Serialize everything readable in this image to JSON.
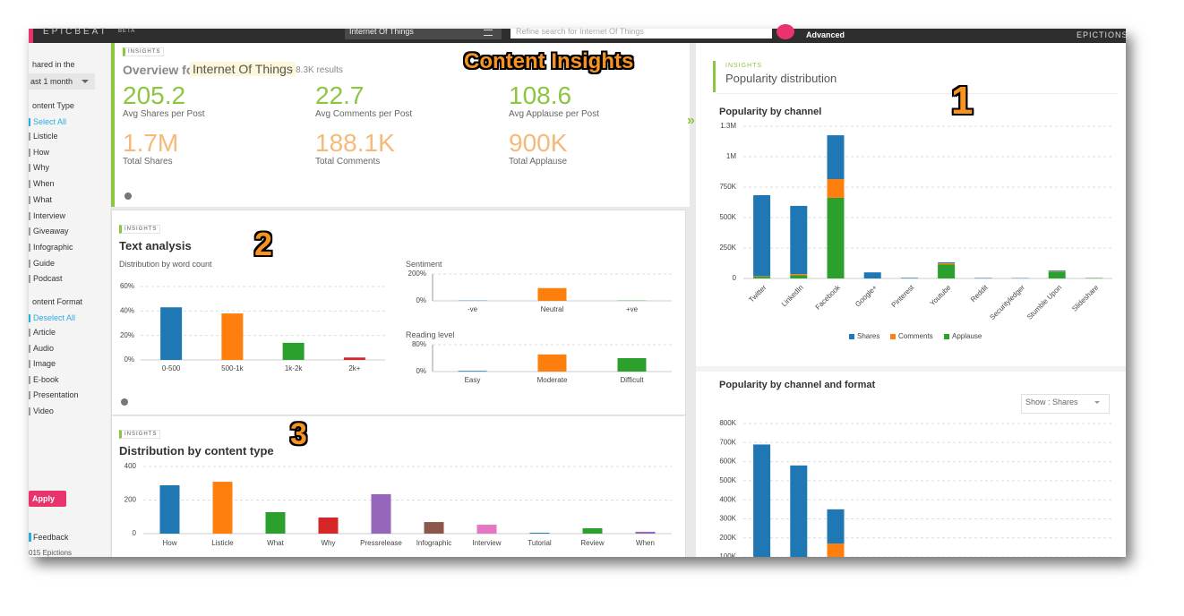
{
  "top_bar": {
    "logo": "EPICBEAT",
    "logo_tag": "BETA",
    "topic": "Internet Of Things",
    "search_placeholder": "Refine search for Internet Of Things",
    "advanced": "Advanced",
    "brand": "EPICTIONS"
  },
  "sidebar": {
    "shared_label": "hared in the",
    "period": "ast 1 month",
    "content_type": {
      "heading": "ontent Type",
      "toggle": "Select All",
      "items": [
        "Listicle",
        "How",
        "Why",
        "When",
        "What",
        "Interview",
        "Giveaway",
        "Infographic",
        "Guide",
        "Podcast"
      ]
    },
    "content_format": {
      "heading": "ontent Format",
      "toggle": "Deselect All",
      "items": [
        "Article",
        "Audio",
        "Image",
        "E-book",
        "Presentation",
        "Video"
      ]
    },
    "apply": "Apply",
    "feedback": "Feedback",
    "copyright": "015 Epictions"
  },
  "annotations": {
    "title": "Content Insights",
    "markers": [
      "1",
      "2",
      "3"
    ]
  },
  "overview": {
    "badge": "INSIGHTS",
    "title": "Overview for",
    "topic": "Internet Of Things",
    "results": "- 8.3K results",
    "metrics": [
      {
        "value": "205.2",
        "label": "Avg Shares per Post"
      },
      {
        "value": "22.7",
        "label": "Avg Comments per Post"
      },
      {
        "value": "108.6",
        "label": "Avg Applause per Post"
      },
      {
        "value": "1.7M",
        "label": "Total Shares"
      },
      {
        "value": "188.1K",
        "label": "Total Comments"
      },
      {
        "value": "900K",
        "label": "Total Applause"
      }
    ]
  },
  "text_analysis": {
    "badge": "INSIGHTS",
    "title": "Text analysis"
  },
  "content_type_panel": {
    "badge": "INSIGHTS"
  },
  "popularity": {
    "badge": "INSIGHTS",
    "title": "Popularity distribution",
    "show_filter": "Show : Shares"
  },
  "chart_data": [
    {
      "type": "bar",
      "title": "Distribution by word count",
      "categories": [
        "0-500",
        "500-1k",
        "1k-2k",
        "2k+"
      ],
      "values": [
        43,
        38,
        14,
        2
      ],
      "colors": [
        "#1f77b4",
        "#ff7f0e",
        "#2ca02c",
        "#d62728"
      ],
      "ylim": [
        0,
        60
      ],
      "yticks": [
        {
          "value": 0,
          "label": "0%"
        },
        {
          "value": 20,
          "label": "20%"
        },
        {
          "value": 40,
          "label": "40%"
        },
        {
          "value": 60,
          "label": "60%"
        }
      ],
      "grid": true
    },
    {
      "type": "bar",
      "title": "Sentiment",
      "categories": [
        "-ve",
        "Neutral",
        "+ve"
      ],
      "values": [
        2,
        95,
        2
      ],
      "colors": [
        "#1f77b4",
        "#ff7f0e",
        "#2ca02c"
      ],
      "ylim": [
        0,
        200
      ],
      "yticks": [
        {
          "value": 0,
          "label": "0%"
        },
        {
          "value": 200,
          "label": "200%"
        }
      ],
      "grid": true
    },
    {
      "type": "bar",
      "title": "Reading level",
      "categories": [
        "Easy",
        "Moderate",
        "Difficult"
      ],
      "values": [
        2,
        51,
        40
      ],
      "colors": [
        "#1f77b4",
        "#ff7f0e",
        "#2ca02c"
      ],
      "ylim": [
        0,
        80
      ],
      "yticks": [
        {
          "value": 0,
          "label": "0%"
        },
        {
          "value": 80,
          "label": "80%"
        }
      ],
      "grid": true
    },
    {
      "type": "bar",
      "title": "Distribution by content type",
      "categories": [
        "How",
        "Listicle",
        "What",
        "Why",
        "Pressrelease",
        "Infographic",
        "Interview",
        "Tutorial",
        "Review",
        "When"
      ],
      "values": [
        288,
        309,
        128,
        96,
        235,
        69,
        53,
        5,
        32,
        11
      ],
      "colors": [
        "#1f77b4",
        "#ff7f0e",
        "#2ca02c",
        "#d62728",
        "#9467bd",
        "#8c564b",
        "#e377c2",
        "#1f77b4",
        "#2ca02c",
        "#9467bd"
      ],
      "ylim": [
        0,
        400
      ],
      "yticks": [
        0,
        200,
        400
      ],
      "grid": true
    },
    {
      "type": "bar",
      "stacked": true,
      "title": "Popularity by channel",
      "categories": [
        "Twitter",
        "LinkedIn",
        "Facebook",
        "Google+",
        "Pinterest",
        "Youtube",
        "Reddit",
        "Securityledger",
        "Stumble Upon",
        "Slideshare"
      ],
      "series": [
        {
          "name": "Shares",
          "color": "#1f77b4",
          "values": [
            665000,
            560000,
            360000,
            50000,
            5000,
            8000,
            4000,
            3000,
            5000,
            0
          ]
        },
        {
          "name": "Comments",
          "color": "#ff7f0e",
          "values": [
            5000,
            10000,
            154000,
            0,
            0,
            10000,
            0,
            0,
            4000,
            0
          ]
        },
        {
          "name": "Applause",
          "color": "#2ca02c",
          "values": [
            14000,
            26000,
            662000,
            0,
            0,
            114000,
            0,
            0,
            57000,
            4000
          ]
        }
      ],
      "ylim": [
        0,
        1250000
      ],
      "yticks": [
        0,
        {
          "value": 250000,
          "label": "250K"
        },
        {
          "value": 500000,
          "label": "500K"
        },
        {
          "value": 750000,
          "label": "750K"
        },
        {
          "value": 1000000,
          "label": "1M"
        },
        {
          "value": 1250000,
          "label": "1.3M"
        }
      ],
      "grid": true
    },
    {
      "type": "bar",
      "stacked": true,
      "title": "Popularity by channel and format",
      "categories": [
        null,
        null,
        null
      ],
      "series": [
        {
          "color": "#1f77b4",
          "values": [
            690000,
            580000,
            180000
          ]
        },
        {
          "color": "#ff7f0e",
          "values": [
            null,
            null,
            170000
          ]
        }
      ],
      "ylim": [
        0,
        800000
      ],
      "yticks": [
        {
          "value": 100000,
          "label": "100K"
        },
        {
          "value": 200000,
          "label": "200K"
        },
        {
          "value": 300000,
          "label": "300K"
        },
        {
          "value": 400000,
          "label": "400K"
        },
        {
          "value": 500000,
          "label": "500K"
        },
        {
          "value": 600000,
          "label": "600K"
        },
        {
          "value": 700000,
          "label": "700K"
        },
        {
          "value": 800000,
          "label": "800K"
        }
      ],
      "grid": true
    }
  ]
}
